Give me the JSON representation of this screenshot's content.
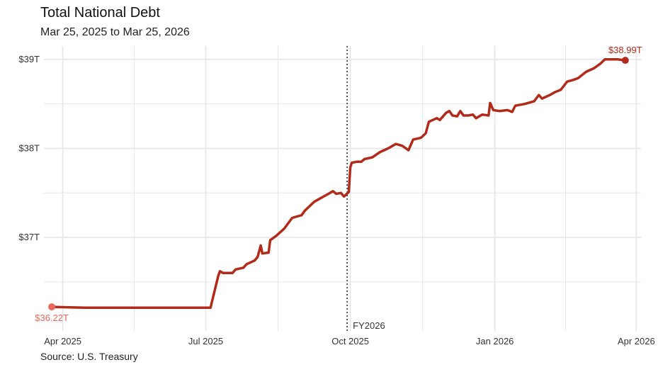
{
  "title": "Total National Debt",
  "subtitle": "Mar 25, 2025 to Mar 25, 2026",
  "caption": "Source: U.S. Treasury",
  "colors": {
    "line": "#b22a1a",
    "start_point": "#e8685a",
    "end_label": "#b22a1a",
    "grid": "#e6e6e6",
    "fy_line": "#333333"
  },
  "chart_data": {
    "type": "line",
    "title": "Total National Debt",
    "subtitle": "Mar 25, 2025 to Mar 25, 2026",
    "xlabel": "",
    "ylabel": "",
    "units": "trillions USD",
    "xlim": [
      "2025-03-25",
      "2026-03-25"
    ],
    "ylim": [
      36.0,
      39.1
    ],
    "y_ticks": [
      37,
      38,
      39
    ],
    "y_tick_labels": [
      "$37T",
      "$38T",
      "$39T"
    ],
    "x_ticks": [
      "2025-04-01",
      "2025-07-01",
      "2025-10-01",
      "2026-01-01",
      "2026-04-01"
    ],
    "x_tick_labels": [
      "Apr 2025",
      "Jul 2025",
      "Oct 2025",
      "Jan 2026",
      "Apr 2026"
    ],
    "grid": true,
    "annotations": {
      "start": {
        "x": "2025-03-25",
        "y": 36.22,
        "label": "$36.22T"
      },
      "end": {
        "x": "2026-03-25",
        "y": 38.99,
        "label": "$38.99T"
      },
      "vline": {
        "x": "2025-10-01",
        "label": "FY2026"
      }
    },
    "series": [
      {
        "points": [
          [
            "2025-03-25",
            36.22
          ],
          [
            "2025-04-15",
            36.21
          ],
          [
            "2025-05-01",
            36.21
          ],
          [
            "2025-05-15",
            36.21
          ],
          [
            "2025-06-01",
            36.21
          ],
          [
            "2025-06-15",
            36.21
          ],
          [
            "2025-07-01",
            36.21
          ],
          [
            "2025-07-04",
            36.21
          ],
          [
            "2025-07-09",
            36.57
          ],
          [
            "2025-07-10",
            36.62
          ],
          [
            "2025-07-12",
            36.6
          ],
          [
            "2025-07-18",
            36.6
          ],
          [
            "2025-07-20",
            36.64
          ],
          [
            "2025-07-25",
            36.66
          ],
          [
            "2025-07-27",
            36.7
          ],
          [
            "2025-08-01",
            36.74
          ],
          [
            "2025-08-03",
            36.78
          ],
          [
            "2025-08-05",
            36.91
          ],
          [
            "2025-08-06",
            36.82
          ],
          [
            "2025-08-10",
            36.83
          ],
          [
            "2025-08-11",
            36.97
          ],
          [
            "2025-08-15",
            37.02
          ],
          [
            "2025-08-20",
            37.1
          ],
          [
            "2025-08-25",
            37.22
          ],
          [
            "2025-08-31",
            37.25
          ],
          [
            "2025-09-02",
            37.3
          ],
          [
            "2025-09-08",
            37.4
          ],
          [
            "2025-09-12",
            37.44
          ],
          [
            "2025-09-15",
            37.47
          ],
          [
            "2025-09-18",
            37.5
          ],
          [
            "2025-09-20",
            37.52
          ],
          [
            "2025-09-22",
            37.49
          ],
          [
            "2025-09-25",
            37.5
          ],
          [
            "2025-09-27",
            37.46
          ],
          [
            "2025-09-30",
            37.51
          ],
          [
            "2025-10-01",
            37.79
          ],
          [
            "2025-10-02",
            37.84
          ],
          [
            "2025-10-05",
            37.85
          ],
          [
            "2025-10-08",
            37.85
          ],
          [
            "2025-10-10",
            37.88
          ],
          [
            "2025-10-15",
            37.9
          ],
          [
            "2025-10-20",
            37.96
          ],
          [
            "2025-10-25",
            38.0
          ],
          [
            "2025-10-30",
            38.05
          ],
          [
            "2025-11-03",
            38.03
          ],
          [
            "2025-11-07",
            37.98
          ],
          [
            "2025-11-10",
            38.1
          ],
          [
            "2025-11-15",
            38.12
          ],
          [
            "2025-11-18",
            38.17
          ],
          [
            "2025-11-20",
            38.3
          ],
          [
            "2025-11-25",
            38.34
          ],
          [
            "2025-11-27",
            38.32
          ],
          [
            "2025-12-01",
            38.4
          ],
          [
            "2025-12-03",
            38.42
          ],
          [
            "2025-12-05",
            38.37
          ],
          [
            "2025-12-08",
            38.36
          ],
          [
            "2025-12-10",
            38.42
          ],
          [
            "2025-12-12",
            38.37
          ],
          [
            "2025-12-15",
            38.37
          ],
          [
            "2025-12-18",
            38.38
          ],
          [
            "2025-12-20",
            38.34
          ],
          [
            "2025-12-24",
            38.38
          ],
          [
            "2025-12-28",
            38.37
          ],
          [
            "2025-12-29",
            38.51
          ],
          [
            "2025-12-31",
            38.43
          ],
          [
            "2026-01-04",
            38.42
          ],
          [
            "2026-01-09",
            38.43
          ],
          [
            "2026-01-12",
            38.41
          ],
          [
            "2026-01-14",
            38.48
          ],
          [
            "2026-01-20",
            38.5
          ],
          [
            "2026-01-26",
            38.53
          ],
          [
            "2026-01-29",
            38.6
          ],
          [
            "2026-01-31",
            38.56
          ],
          [
            "2026-02-05",
            38.6
          ],
          [
            "2026-02-08",
            38.63
          ],
          [
            "2026-02-12",
            38.66
          ],
          [
            "2026-02-16",
            38.75
          ],
          [
            "2026-02-20",
            38.77
          ],
          [
            "2026-02-23",
            38.79
          ],
          [
            "2026-02-28",
            38.86
          ],
          [
            "2026-03-05",
            38.9
          ],
          [
            "2026-03-09",
            38.95
          ],
          [
            "2026-03-12",
            39.0
          ],
          [
            "2026-03-15",
            39.0
          ],
          [
            "2026-03-20",
            39.0
          ],
          [
            "2026-03-25",
            38.99
          ]
        ]
      }
    ]
  }
}
